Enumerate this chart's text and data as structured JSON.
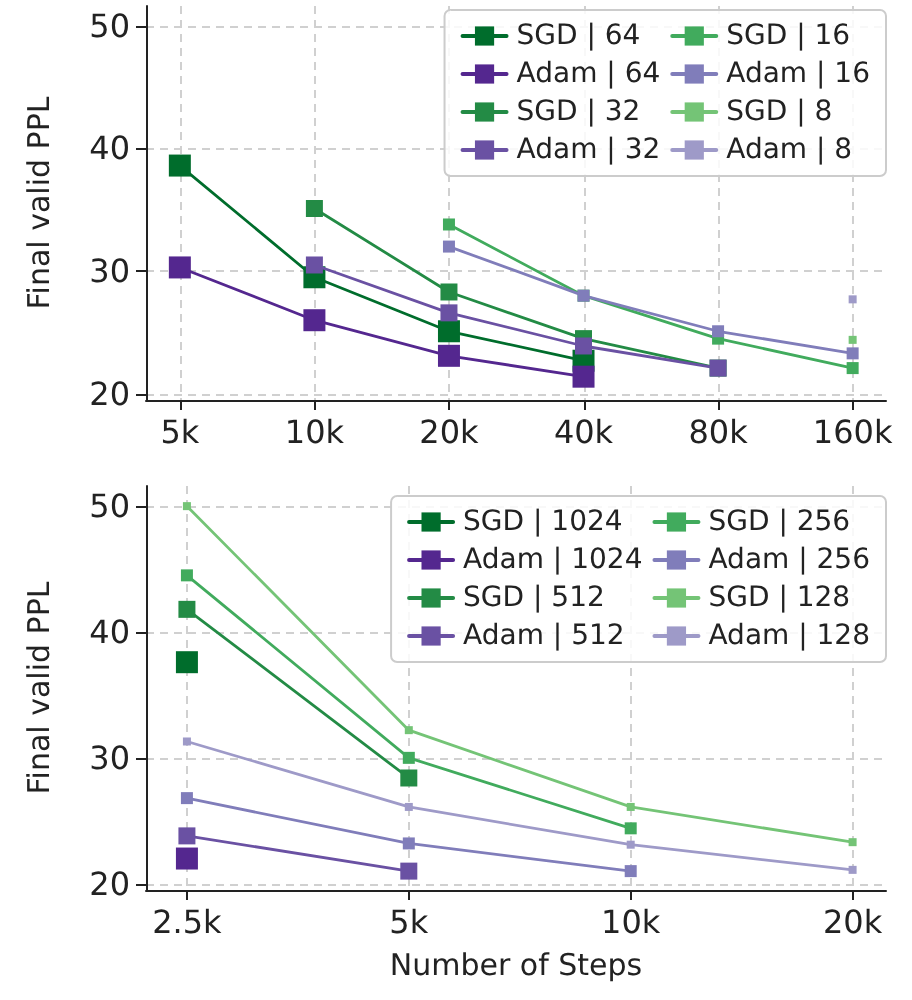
{
  "chart_data": [
    {
      "type": "line",
      "ylabel": "Final valid PPL",
      "log": "x",
      "grid": true,
      "legend": "top right",
      "marker": "square",
      "line_style": "solid",
      "xlim": [
        4200,
        190000
      ],
      "xticks": [
        {
          "value": 5000,
          "label": "5k"
        },
        {
          "value": 10000,
          "label": "10k"
        },
        {
          "value": 20000,
          "label": "20k"
        },
        {
          "value": 40000,
          "label": "40k"
        },
        {
          "value": 80000,
          "label": "80k"
        },
        {
          "value": 160000,
          "label": "160k"
        }
      ],
      "ylim": [
        19.5,
        51.6
      ],
      "yticks": [
        20,
        30,
        40,
        50
      ],
      "series": [
        {
          "name": "SGD | 64",
          "color": "#006d2c",
          "x": [
            5000,
            10000,
            20000,
            40000
          ],
          "values": [
            38.6,
            29.5,
            25.1,
            22.7
          ]
        },
        {
          "name": "Adam | 64",
          "color": "#54278f",
          "x": [
            5000,
            10000,
            20000,
            40000
          ],
          "values": [
            30.3,
            26.0,
            23.1,
            21.4
          ]
        },
        {
          "name": "SGD | 32",
          "color": "#238b45",
          "x": [
            10000,
            20000,
            40000,
            80000
          ],
          "values": [
            35.1,
            28.3,
            24.5,
            22.1
          ]
        },
        {
          "name": "Adam | 32",
          "color": "#6a51a3",
          "x": [
            10000,
            20000,
            40000,
            80000
          ],
          "values": [
            30.5,
            26.6,
            23.9,
            22.1
          ]
        },
        {
          "name": "SGD | 16",
          "color": "#41ab5d",
          "x": [
            20000,
            40000,
            80000,
            160000
          ],
          "values": [
            33.8,
            28.0,
            24.5,
            22.1
          ]
        },
        {
          "name": "Adam | 16",
          "color": "#807dba",
          "x": [
            20000,
            40000,
            80000,
            160000
          ],
          "values": [
            32.0,
            28.0,
            25.1,
            23.3
          ]
        },
        {
          "name": "SGD | 8",
          "color": "#74c476",
          "x": [
            160000
          ],
          "values": [
            24.4
          ]
        },
        {
          "name": "Adam | 8",
          "color": "#9e9ac8",
          "x": [
            160000
          ],
          "values": [
            27.7
          ]
        }
      ]
    },
    {
      "type": "line",
      "xlabel": "Number of Steps",
      "ylabel": "Final valid PPL",
      "log": "x",
      "grid": true,
      "legend": "top right",
      "marker": "square",
      "line_style": "solid",
      "xlim": [
        2200,
        22200
      ],
      "xticks": [
        {
          "value": 2500,
          "label": "2.5k"
        },
        {
          "value": 5000,
          "label": "5k"
        },
        {
          "value": 10000,
          "label": "10k"
        },
        {
          "value": 20000,
          "label": "20k"
        }
      ],
      "ylim": [
        19.5,
        51.6
      ],
      "yticks": [
        20,
        30,
        40,
        50
      ],
      "series": [
        {
          "name": "SGD | 1024",
          "color": "#006d2c",
          "x": [
            2500
          ],
          "values": [
            37.6
          ]
        },
        {
          "name": "Adam | 1024",
          "color": "#54278f",
          "x": [
            2500
          ],
          "values": [
            22.0
          ]
        },
        {
          "name": "SGD | 512",
          "color": "#238b45",
          "x": [
            2500,
            5000
          ],
          "values": [
            41.8,
            28.4
          ]
        },
        {
          "name": "Adam | 512",
          "color": "#6a51a3",
          "x": [
            2500,
            5000
          ],
          "values": [
            23.8,
            21.0
          ]
        },
        {
          "name": "SGD | 256",
          "color": "#41ab5d",
          "x": [
            2500,
            5000,
            10000
          ],
          "values": [
            44.5,
            30.0,
            24.4
          ]
        },
        {
          "name": "Adam | 256",
          "color": "#807dba",
          "x": [
            2500,
            5000,
            10000
          ],
          "values": [
            26.8,
            23.2,
            21.0
          ]
        },
        {
          "name": "SGD | 128",
          "color": "#74c476",
          "x": [
            2500,
            5000,
            10000,
            20000
          ],
          "values": [
            50.0,
            32.2,
            26.1,
            23.3
          ]
        },
        {
          "name": "Adam | 128",
          "color": "#9e9ac8",
          "x": [
            2500,
            5000,
            10000,
            20000
          ],
          "values": [
            31.3,
            26.1,
            23.1,
            21.1
          ]
        }
      ]
    }
  ]
}
